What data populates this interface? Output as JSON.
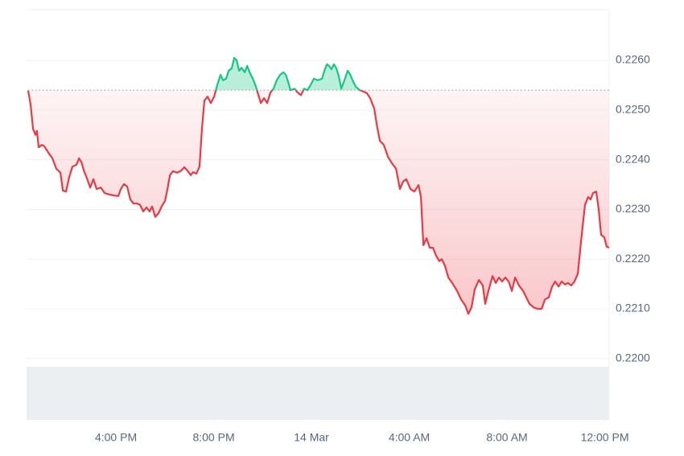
{
  "chart_data": {
    "type": "baseline-line",
    "baseline": 0.2254,
    "up_color": "#16c784",
    "down_color": "#ea3943",
    "grid": true,
    "xlim": [
      -11.59,
      12.18
    ],
    "ylim": [
      0.2188,
      0.22702
    ],
    "xticks": [
      {
        "value": -8,
        "label": "4:00 PM"
      },
      {
        "value": -4,
        "label": "8:00 PM"
      },
      {
        "value": 0,
        "label": "14 Mar"
      },
      {
        "value": 4,
        "label": "4:00 AM"
      },
      {
        "value": 8,
        "label": "8:00 AM"
      },
      {
        "value": 12,
        "label": "12:00 PM"
      }
    ],
    "yticks": [
      {
        "value": 0.22,
        "label": "0.2200"
      },
      {
        "value": 0.221,
        "label": "0.2210"
      },
      {
        "value": 0.222,
        "label": "0.2220"
      },
      {
        "value": 0.223,
        "label": "0.2230"
      },
      {
        "value": 0.224,
        "label": "0.2240"
      },
      {
        "value": 0.225,
        "label": "0.2250"
      },
      {
        "value": 0.226,
        "label": "0.2260"
      }
    ],
    "x": [
      -11.59,
      -11.49,
      -11.39,
      -11.29,
      -11.23,
      -11.16,
      -11.03,
      -10.93,
      -10.76,
      -10.6,
      -10.44,
      -10.27,
      -10.17,
      -10.04,
      -9.91,
      -9.78,
      -9.61,
      -9.51,
      -9.41,
      -9.31,
      -9.18,
      -9.05,
      -8.92,
      -8.79,
      -8.62,
      -8.46,
      -8.26,
      -8.07,
      -7.9,
      -7.8,
      -7.67,
      -7.54,
      -7.41,
      -7.28,
      -7.14,
      -7.01,
      -6.88,
      -6.75,
      -6.62,
      -6.52,
      -6.39,
      -6.25,
      -6.12,
      -5.99,
      -5.89,
      -5.79,
      -5.66,
      -5.5,
      -5.33,
      -5.2,
      -5.07,
      -4.94,
      -4.84,
      -4.71,
      -4.58,
      -4.48,
      -4.38,
      -4.25,
      -4.12,
      -3.98,
      -3.85,
      -3.72,
      -3.62,
      -3.49,
      -3.39,
      -3.26,
      -3.16,
      -3.06,
      -2.96,
      -2.86,
      -2.73,
      -2.63,
      -2.53,
      -2.4,
      -2.27,
      -2.17,
      -2.07,
      -1.94,
      -1.81,
      -1.68,
      -1.55,
      -1.42,
      -1.28,
      -1.15,
      -1.05,
      -0.95,
      -0.86,
      -0.69,
      -0.56,
      -0.43,
      -0.3,
      -0.16,
      -0.03,
      0.1,
      0.26,
      0.43,
      0.53,
      0.63,
      0.72,
      0.82,
      0.92,
      1.02,
      1.12,
      1.22,
      1.35,
      1.48,
      1.58,
      1.68,
      1.81,
      1.98,
      2.14,
      2.27,
      2.4,
      2.57,
      2.67,
      2.8,
      2.96,
      3.13,
      3.29,
      3.46,
      3.62,
      3.75,
      3.88,
      4.05,
      4.21,
      4.38,
      4.48,
      4.58,
      4.71,
      4.84,
      4.97,
      5.1,
      5.23,
      5.33,
      5.46,
      5.6,
      5.76,
      5.96,
      6.12,
      6.29,
      6.42,
      6.55,
      6.68,
      6.85,
      7.01,
      7.11,
      7.24,
      7.41,
      7.54,
      7.67,
      7.8,
      7.93,
      8.07,
      8.2,
      8.33,
      8.49,
      8.66,
      8.79,
      8.92,
      9.09,
      9.25,
      9.42,
      9.55,
      9.71,
      9.84,
      9.97,
      10.11,
      10.24,
      10.37,
      10.5,
      10.63,
      10.76,
      10.9,
      11.03,
      11.19,
      11.32,
      11.42,
      11.52,
      11.65,
      11.75,
      11.85,
      11.98,
      12.08,
      12.18
    ],
    "values": [
      0.22539,
      0.22511,
      0.22462,
      0.2245,
      0.22458,
      0.22425,
      0.2243,
      0.22427,
      0.22414,
      0.22403,
      0.22382,
      0.22374,
      0.22338,
      0.22336,
      0.22365,
      0.22386,
      0.2239,
      0.22403,
      0.22395,
      0.22378,
      0.22362,
      0.22344,
      0.22361,
      0.22341,
      0.22344,
      0.22333,
      0.2233,
      0.22328,
      0.22327,
      0.22341,
      0.22351,
      0.22346,
      0.2232,
      0.22312,
      0.22312,
      0.22309,
      0.22296,
      0.22304,
      0.22296,
      0.22306,
      0.22285,
      0.22293,
      0.22307,
      0.22317,
      0.22341,
      0.22369,
      0.22377,
      0.22374,
      0.22378,
      0.22385,
      0.22378,
      0.22369,
      0.22375,
      0.22372,
      0.22386,
      0.22462,
      0.22519,
      0.22527,
      0.22514,
      0.22527,
      0.22551,
      0.22571,
      0.2256,
      0.22563,
      0.22579,
      0.22584,
      0.22605,
      0.226,
      0.22579,
      0.22585,
      0.22576,
      0.22589,
      0.22576,
      0.22563,
      0.22547,
      0.2253,
      0.22514,
      0.22524,
      0.22514,
      0.22535,
      0.22543,
      0.2256,
      0.22571,
      0.22576,
      0.22571,
      0.22556,
      0.2254,
      0.22543,
      0.22535,
      0.2253,
      0.22543,
      0.2254,
      0.22551,
      0.22563,
      0.2256,
      0.22563,
      0.22579,
      0.22592,
      0.22589,
      0.22582,
      0.22592,
      0.22584,
      0.22568,
      0.22543,
      0.2256,
      0.22579,
      0.22572,
      0.2256,
      0.22547,
      0.2254,
      0.22537,
      0.22534,
      0.22524,
      0.22503,
      0.22471,
      0.22438,
      0.2243,
      0.22406,
      0.22393,
      0.22382,
      0.22341,
      0.22356,
      0.22361,
      0.22341,
      0.22336,
      0.22349,
      0.22325,
      0.22228,
      0.22242,
      0.22223,
      0.22223,
      0.22207,
      0.22196,
      0.222,
      0.22187,
      0.22163,
      0.22152,
      0.22136,
      0.22119,
      0.22107,
      0.2209,
      0.22103,
      0.22139,
      0.22158,
      0.22147,
      0.2211,
      0.22136,
      0.22166,
      0.22152,
      0.22163,
      0.22155,
      0.22163,
      0.22155,
      0.22136,
      0.22163,
      0.22147,
      0.22136,
      0.22123,
      0.2211,
      0.22103,
      0.221,
      0.221,
      0.22119,
      0.22123,
      0.22144,
      0.22155,
      0.22145,
      0.22155,
      0.22149,
      0.22152,
      0.22147,
      0.22155,
      0.22171,
      0.22236,
      0.22309,
      0.22325,
      0.2232,
      0.22333,
      0.22336,
      0.22301,
      0.22249,
      0.22244,
      0.22225,
      0.22223
    ]
  }
}
